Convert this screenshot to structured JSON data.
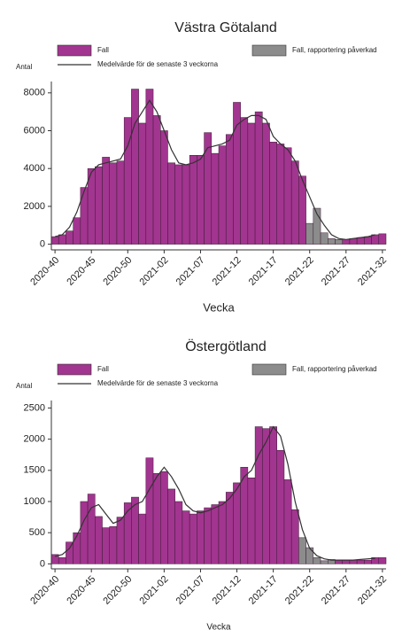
{
  "chart_data": [
    {
      "type": "bar",
      "title": "Västra Götaland",
      "y_axis_label": "Antal",
      "x_axis_label": "Vecka",
      "categories": [
        "2020-40",
        null,
        null,
        null,
        null,
        "2020-45",
        null,
        null,
        null,
        null,
        "2020-50",
        null,
        null,
        null,
        null,
        "2021-02",
        null,
        null,
        null,
        null,
        "2021-07",
        null,
        null,
        null,
        null,
        "2021-12",
        null,
        null,
        null,
        null,
        "2021-17",
        null,
        null,
        null,
        null,
        "2021-22",
        null,
        null,
        null,
        null,
        "2021-27",
        null,
        null,
        null,
        null,
        "2021-32"
      ],
      "ylim": [
        -300,
        8600
      ],
      "yticks": [
        0,
        2000,
        4000,
        6000,
        8000
      ],
      "series": [
        {
          "name": "Fall",
          "color": "#a2358f",
          "values": [
            400,
            500,
            700,
            1400,
            3000,
            4000,
            4100,
            4600,
            4300,
            4400,
            6700,
            8200,
            6400,
            8200,
            6800,
            6000,
            4300,
            4200,
            4200,
            4700,
            4700,
            5900,
            4800,
            5200,
            5800,
            7500,
            6700,
            6400,
            7000,
            6400,
            5400,
            5300,
            5100,
            4400,
            3600,
            null,
            null,
            null,
            null,
            null,
            250,
            300,
            350,
            400,
            500,
            550
          ]
        },
        {
          "name": "Fall, rapportering påverkad",
          "color": "#8c8c8c",
          "values": [
            null,
            null,
            null,
            null,
            null,
            null,
            null,
            null,
            null,
            null,
            null,
            null,
            null,
            null,
            null,
            null,
            null,
            null,
            null,
            null,
            null,
            null,
            null,
            null,
            null,
            null,
            null,
            null,
            null,
            null,
            null,
            null,
            null,
            null,
            null,
            1100,
            1900,
            600,
            300,
            250,
            null,
            null,
            null,
            null,
            null,
            null
          ]
        },
        {
          "name": "Medelvärde för de senaste 3 veckorna",
          "type": "line",
          "color": "#333333",
          "values": [
            400,
            500,
            900,
            1700,
            2800,
            3800,
            4200,
            4300,
            4400,
            4500,
            5200,
            6400,
            7000,
            7600,
            7000,
            6000,
            5000,
            4300,
            4200,
            4300,
            4500,
            5100,
            5200,
            5300,
            5500,
            6300,
            6600,
            6800,
            6800,
            6600,
            5700,
            5300,
            5000,
            4400,
            3400,
            2500,
            1600,
            1000,
            500,
            300,
            250,
            300,
            350,
            400,
            500,
            null
          ]
        }
      ]
    },
    {
      "type": "bar",
      "title": "Östergötland",
      "y_axis_label": "Antal",
      "x_axis_label": "Vecka",
      "categories": [
        "2020-40",
        null,
        null,
        null,
        null,
        "2020-45",
        null,
        null,
        null,
        null,
        "2020-50",
        null,
        null,
        null,
        null,
        "2021-02",
        null,
        null,
        null,
        null,
        "2021-07",
        null,
        null,
        null,
        null,
        "2021-12",
        null,
        null,
        null,
        null,
        "2021-17",
        null,
        null,
        null,
        null,
        "2021-22",
        null,
        null,
        null,
        null,
        "2021-27",
        null,
        null,
        null,
        null,
        "2021-32"
      ],
      "ylim": [
        -80,
        2620
      ],
      "yticks": [
        0,
        500,
        1000,
        1500,
        2000,
        2500
      ],
      "series": [
        {
          "name": "Fall",
          "color": "#a2358f",
          "values": [
            150,
            100,
            350,
            500,
            1000,
            1120,
            760,
            580,
            600,
            750,
            980,
            1070,
            800,
            1700,
            1450,
            1480,
            1200,
            1000,
            850,
            800,
            850,
            900,
            950,
            1000,
            1150,
            1300,
            1550,
            1380,
            2200,
            2170,
            2200,
            1820,
            1350,
            870,
            null,
            null,
            null,
            null,
            null,
            60,
            60,
            60,
            60,
            60,
            100,
            100
          ]
        },
        {
          "name": "Fall, rapportering påverkad",
          "color": "#8c8c8c",
          "values": [
            null,
            null,
            null,
            null,
            null,
            null,
            null,
            null,
            null,
            null,
            null,
            null,
            null,
            null,
            null,
            null,
            null,
            null,
            null,
            null,
            null,
            null,
            null,
            null,
            null,
            null,
            null,
            null,
            null,
            null,
            null,
            null,
            null,
            null,
            420,
            260,
            100,
            50,
            70,
            null,
            null,
            null,
            null,
            null,
            null,
            null
          ]
        },
        {
          "name": "Medelvärde för de senaste 3 veckorna",
          "type": "line",
          "color": "#333333",
          "values": [
            120,
            150,
            250,
            450,
            700,
            900,
            950,
            800,
            650,
            700,
            850,
            950,
            1000,
            1200,
            1400,
            1550,
            1400,
            1200,
            950,
            850,
            820,
            850,
            900,
            950,
            1050,
            1200,
            1400,
            1500,
            1750,
            1950,
            2200,
            2050,
            1600,
            1000,
            550,
            250,
            130,
            80,
            60,
            60,
            60,
            60,
            70,
            80,
            90,
            null
          ]
        }
      ]
    }
  ]
}
